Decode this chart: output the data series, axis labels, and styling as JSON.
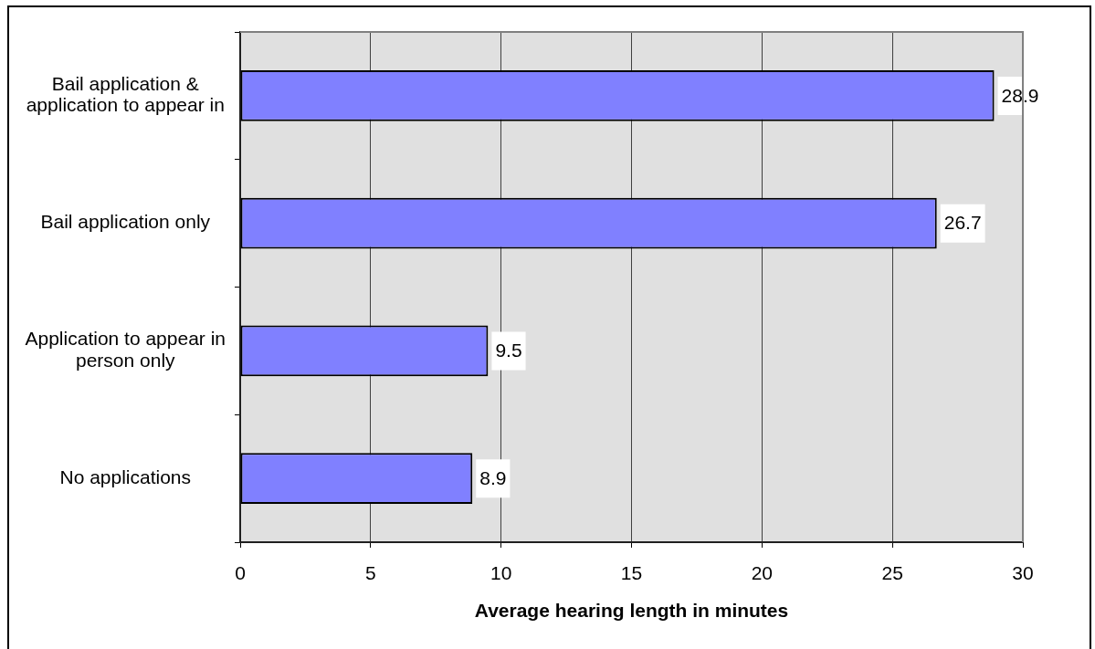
{
  "chart_data": {
    "type": "bar",
    "orientation": "horizontal",
    "categories": [
      "Bail application & application to appear in",
      "Bail application only",
      "Application to appear in person only",
      "No applications"
    ],
    "values": [
      28.9,
      26.7,
      9.5,
      8.9
    ],
    "color": "#8080ff",
    "data_labels": true,
    "xlabel": "Average hearing length in minutes",
    "xlim": [
      0,
      30
    ],
    "xticks": [
      0,
      5,
      10,
      15,
      20,
      25,
      30
    ],
    "grid": "x",
    "legend": false
  }
}
